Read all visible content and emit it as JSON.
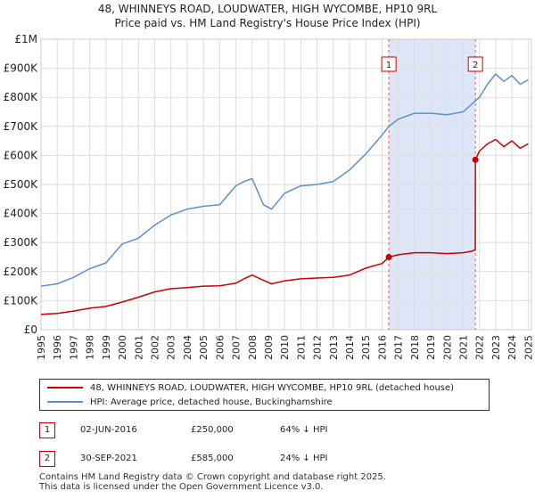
{
  "header": {
    "title_line1": "48, WHINNEYS ROAD, LOUDWATER, HIGH WYCOMBE, HP10 9RL",
    "title_line2": "Price paid vs. HM Land Registry's House Price Index (HPI)"
  },
  "chart_data": {
    "type": "line",
    "title": "Price paid vs. HM Land Registry's House Price Index (HPI)",
    "xlabel": "",
    "ylabel": "",
    "xlim": [
      1995,
      2025.2
    ],
    "ylim": [
      0,
      1000000
    ],
    "y_ticks": [
      0,
      100000,
      200000,
      300000,
      400000,
      500000,
      600000,
      700000,
      800000,
      900000,
      1000000
    ],
    "y_tick_labels": [
      "£0",
      "£100K",
      "£200K",
      "£300K",
      "£400K",
      "£500K",
      "£600K",
      "£700K",
      "£800K",
      "£900K",
      "£1M"
    ],
    "x_ticks": [
      1995,
      1996,
      1997,
      1998,
      1999,
      2000,
      2001,
      2002,
      2003,
      2004,
      2005,
      2006,
      2007,
      2008,
      2009,
      2010,
      2011,
      2012,
      2013,
      2014,
      2015,
      2016,
      2017,
      2018,
      2019,
      2020,
      2021,
      2022,
      2023,
      2024,
      2025
    ],
    "x_tick_labels": [
      "1995",
      "1996",
      "1997",
      "1998",
      "1999",
      "2000",
      "2001",
      "2002",
      "2003",
      "2004",
      "2005",
      "2006",
      "2007",
      "2008",
      "2009",
      "2010",
      "2011",
      "2012",
      "2013",
      "2014",
      "2015",
      "2016",
      "2017",
      "2018",
      "2019",
      "2020",
      "2021",
      "2022",
      "2023",
      "2024",
      "2025"
    ],
    "grid": true,
    "shaded_region": {
      "from": 2016.42,
      "to": 2021.75,
      "color": "#dde6f7"
    },
    "colors": {
      "property": "#cc0000",
      "hpi": "#5a8fd0",
      "shade": "#dde6f7",
      "grid": "#dddddd"
    },
    "series": [
      {
        "name": "48, WHINNEYS ROAD, LOUDWATER, HIGH WYCOMBE, HP10 9RL (detached house)",
        "color": "#cc0000",
        "x": [
          1995.0,
          1996.0,
          1997.0,
          1998.0,
          1999.0,
          2000.0,
          2001.0,
          2002.0,
          2003.0,
          2004.0,
          2005.0,
          2006.0,
          2007.0,
          2007.5,
          2008.0,
          2008.7,
          2009.2,
          2010.0,
          2011.0,
          2012.0,
          2013.0,
          2014.0,
          2015.0,
          2016.0,
          2016.42,
          2017.0,
          2018.0,
          2019.0,
          2020.0,
          2021.0,
          2021.5,
          2021.74,
          2021.75,
          2022.0,
          2022.5,
          2023.0,
          2023.5,
          2024.0,
          2024.5,
          2025.0
        ],
        "y": [
          53000,
          56000,
          64000,
          74000,
          80000,
          95000,
          112000,
          130000,
          141000,
          145000,
          150000,
          151000,
          160000,
          175000,
          188000,
          170000,
          158000,
          168000,
          175000,
          178000,
          180000,
          188000,
          212000,
          228000,
          250000,
          258000,
          265000,
          265000,
          262000,
          265000,
          270000,
          275000,
          585000,
          615000,
          640000,
          655000,
          630000,
          650000,
          625000,
          640000
        ]
      },
      {
        "name": "HPI: Average price, detached house, Buckinghamshire",
        "color": "#5a8fd0",
        "x": [
          1995.0,
          1996.0,
          1997.0,
          1998.0,
          1999.0,
          2000.0,
          2001.0,
          2002.0,
          2003.0,
          2004.0,
          2005.0,
          2006.0,
          2007.0,
          2007.5,
          2008.0,
          2008.7,
          2009.2,
          2010.0,
          2011.0,
          2012.0,
          2013.0,
          2014.0,
          2015.0,
          2016.0,
          2016.42,
          2017.0,
          2018.0,
          2019.0,
          2020.0,
          2021.0,
          2021.5,
          2022.0,
          2022.5,
          2023.0,
          2023.5,
          2024.0,
          2024.5,
          2025.0
        ],
        "y": [
          150000,
          158000,
          180000,
          210000,
          230000,
          295000,
          315000,
          360000,
          395000,
          415000,
          425000,
          430000,
          495000,
          510000,
          520000,
          430000,
          415000,
          470000,
          495000,
          500000,
          510000,
          550000,
          605000,
          670000,
          700000,
          725000,
          745000,
          745000,
          740000,
          750000,
          775000,
          800000,
          845000,
          880000,
          855000,
          875000,
          845000,
          860000
        ]
      }
    ],
    "markers": [
      {
        "label": "1",
        "x": 2016.42,
        "y": 250000
      },
      {
        "label": "2",
        "x": 2021.75,
        "y": 585000
      }
    ]
  },
  "legend": {
    "items": [
      {
        "label": "48, WHINNEYS ROAD, LOUDWATER, HIGH WYCOMBE, HP10 9RL (detached house)",
        "color": "#cc0000"
      },
      {
        "label": "HPI: Average price, detached house, Buckinghamshire",
        "color": "#5a8fd0"
      }
    ]
  },
  "transactions": [
    {
      "num": "1",
      "date": "02-JUN-2016",
      "price": "£250,000",
      "hpi": "64% ↓ HPI"
    },
    {
      "num": "2",
      "date": "30-SEP-2021",
      "price": "£585,000",
      "hpi": "24% ↓ HPI"
    }
  ],
  "footer": {
    "line1": "Contains HM Land Registry data © Crown copyright and database right 2025.",
    "line2": "This data is licensed under the Open Government Licence v3.0."
  }
}
